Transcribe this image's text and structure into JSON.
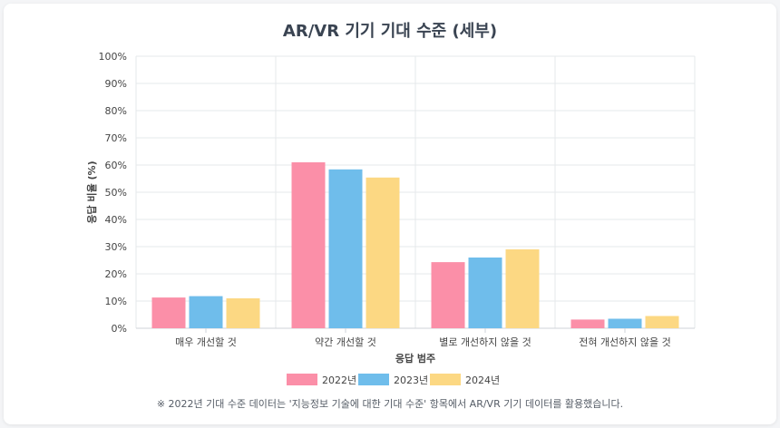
{
  "chart_data": {
    "type": "bar",
    "title": "AR/VR 기기 기대 수준 (세부)",
    "xlabel": "응답 범주",
    "ylabel": "응답 비율 (%)",
    "ylim": [
      0,
      100
    ],
    "yticks": [
      "0%",
      "10%",
      "20%",
      "30%",
      "40%",
      "50%",
      "60%",
      "70%",
      "80%",
      "90%",
      "100%"
    ],
    "categories": [
      "매우 개선할 것",
      "약간 개선할 것",
      "별로 개선하지 않을 것",
      "전혀 개선하지 않을 것"
    ],
    "series": [
      {
        "name": "2022년",
        "color": "#fb8fa8",
        "values": [
          11.3,
          61.0,
          24.3,
          3.2
        ]
      },
      {
        "name": "2023년",
        "color": "#6fbdeb",
        "values": [
          11.8,
          58.4,
          26.0,
          3.5
        ]
      },
      {
        "name": "2024년",
        "color": "#fcd883",
        "values": [
          11.0,
          55.4,
          29.0,
          4.5
        ]
      }
    ],
    "grid": true,
    "legend_position": "bottom"
  },
  "footnote": "※ 2022년 기대 수준 데이터는 '지능정보 기술에 대한 기대 수준' 항목에서 AR/VR 기기 데이터를 활용했습니다."
}
